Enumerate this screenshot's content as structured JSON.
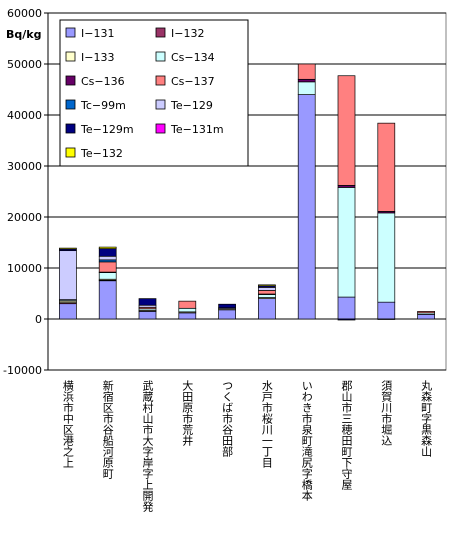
{
  "chart_data": {
    "type": "bar",
    "stacked": true,
    "unit_label": "Bq/kg",
    "ylim": [
      -10000,
      60000
    ],
    "yticks": [
      -10000,
      0,
      10000,
      20000,
      30000,
      40000,
      50000,
      60000
    ],
    "grid": true,
    "legend": "top-left inside, two columns",
    "categories": [
      "横浜市中区港之上",
      "新宿区市谷船河原町",
      "武蔵村山市大字岸字上開発",
      "大田原市荒井",
      "つくば市谷田部",
      "水戸市桜川一丁目",
      "いわき市泉町滝尻字橋本",
      "郡山市三穂田町下守屋",
      "須賀川市堀込",
      "丸森町字黒森山"
    ],
    "series": [
      {
        "name": "Ⅰ−131",
        "color": "#9999ff",
        "values": [
          3000,
          7500,
          1500,
          1200,
          1800,
          4000,
          44000,
          4300,
          3300,
          900
        ]
      },
      {
        "name": "Ⅰ−132",
        "color": "#993366",
        "values": [
          200,
          100,
          0,
          0,
          0,
          0,
          0,
          0,
          0,
          0
        ]
      },
      {
        "name": "Ⅰ−133",
        "color": "#ffffcc",
        "values": [
          300,
          200,
          200,
          200,
          200,
          200,
          0,
          0,
          0,
          0
        ]
      },
      {
        "name": "Cs−134",
        "color": "#ccffff",
        "values": [
          200,
          1300,
          300,
          700,
          0,
          600,
          2500,
          21500,
          17500,
          300
        ]
      },
      {
        "name": "Cs−136",
        "color": "#660066",
        "values": [
          100,
          100,
          0,
          0,
          0,
          100,
          500,
          400,
          300,
          0
        ]
      },
      {
        "name": "Cs−137",
        "color": "#ff8080",
        "values": [
          0,
          2000,
          300,
          1400,
          0,
          700,
          3000,
          21500,
          17300,
          300
        ]
      },
      {
        "name": "Tc−99m",
        "color": "#0066cc",
        "values": [
          0,
          400,
          0,
          0,
          0,
          0,
          0,
          0,
          0,
          0
        ]
      },
      {
        "name": "Te−129",
        "color": "#ccccff",
        "values": [
          9600,
          700,
          400,
          0,
          200,
          600,
          0,
          0,
          0,
          0
        ]
      },
      {
        "name": "Te−129m",
        "color": "#000080",
        "values": [
          300,
          1500,
          1300,
          0,
          700,
          300,
          0,
          -200,
          -100,
          0
        ]
      },
      {
        "name": "Te−131m",
        "color": "#ff00ff",
        "values": [
          0,
          0,
          0,
          0,
          0,
          0,
          0,
          0,
          0,
          0
        ]
      },
      {
        "name": "Te−132",
        "color": "#ffff00",
        "values": [
          200,
          300,
          0,
          0,
          0,
          200,
          0,
          0,
          0,
          0
        ]
      }
    ]
  }
}
